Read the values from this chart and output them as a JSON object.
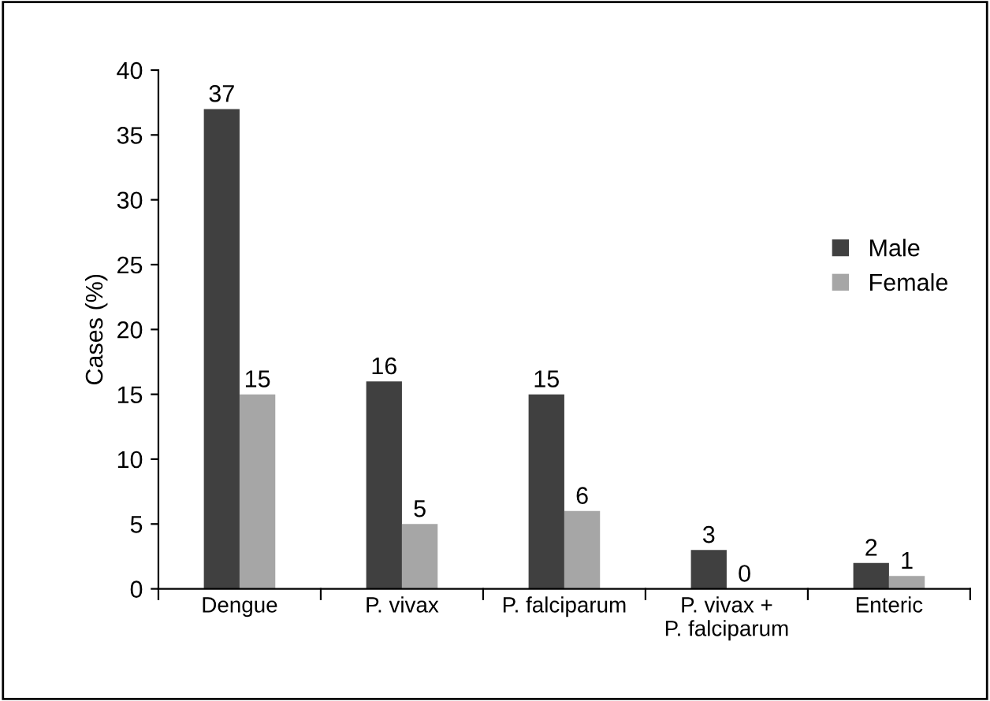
{
  "chart_data": {
    "type": "bar",
    "ylabel": "Cases (%)",
    "categories": [
      "Dengue",
      "P. vivax",
      "P. falciparum",
      "P. vivax +\nP. falciparum",
      "Enteric"
    ],
    "series": [
      {
        "name": "Male",
        "color": "#404040",
        "values": [
          37,
          16,
          15,
          3,
          2
        ]
      },
      {
        "name": "Female",
        "color": "#a6a6a6",
        "values": [
          15,
          5,
          6,
          0,
          1
        ]
      }
    ],
    "ylim": [
      0,
      40
    ],
    "yticks": [
      0,
      5,
      10,
      15,
      20,
      25,
      30,
      35,
      40
    ],
    "data_labels": true,
    "grid": false,
    "legend": "right"
  }
}
